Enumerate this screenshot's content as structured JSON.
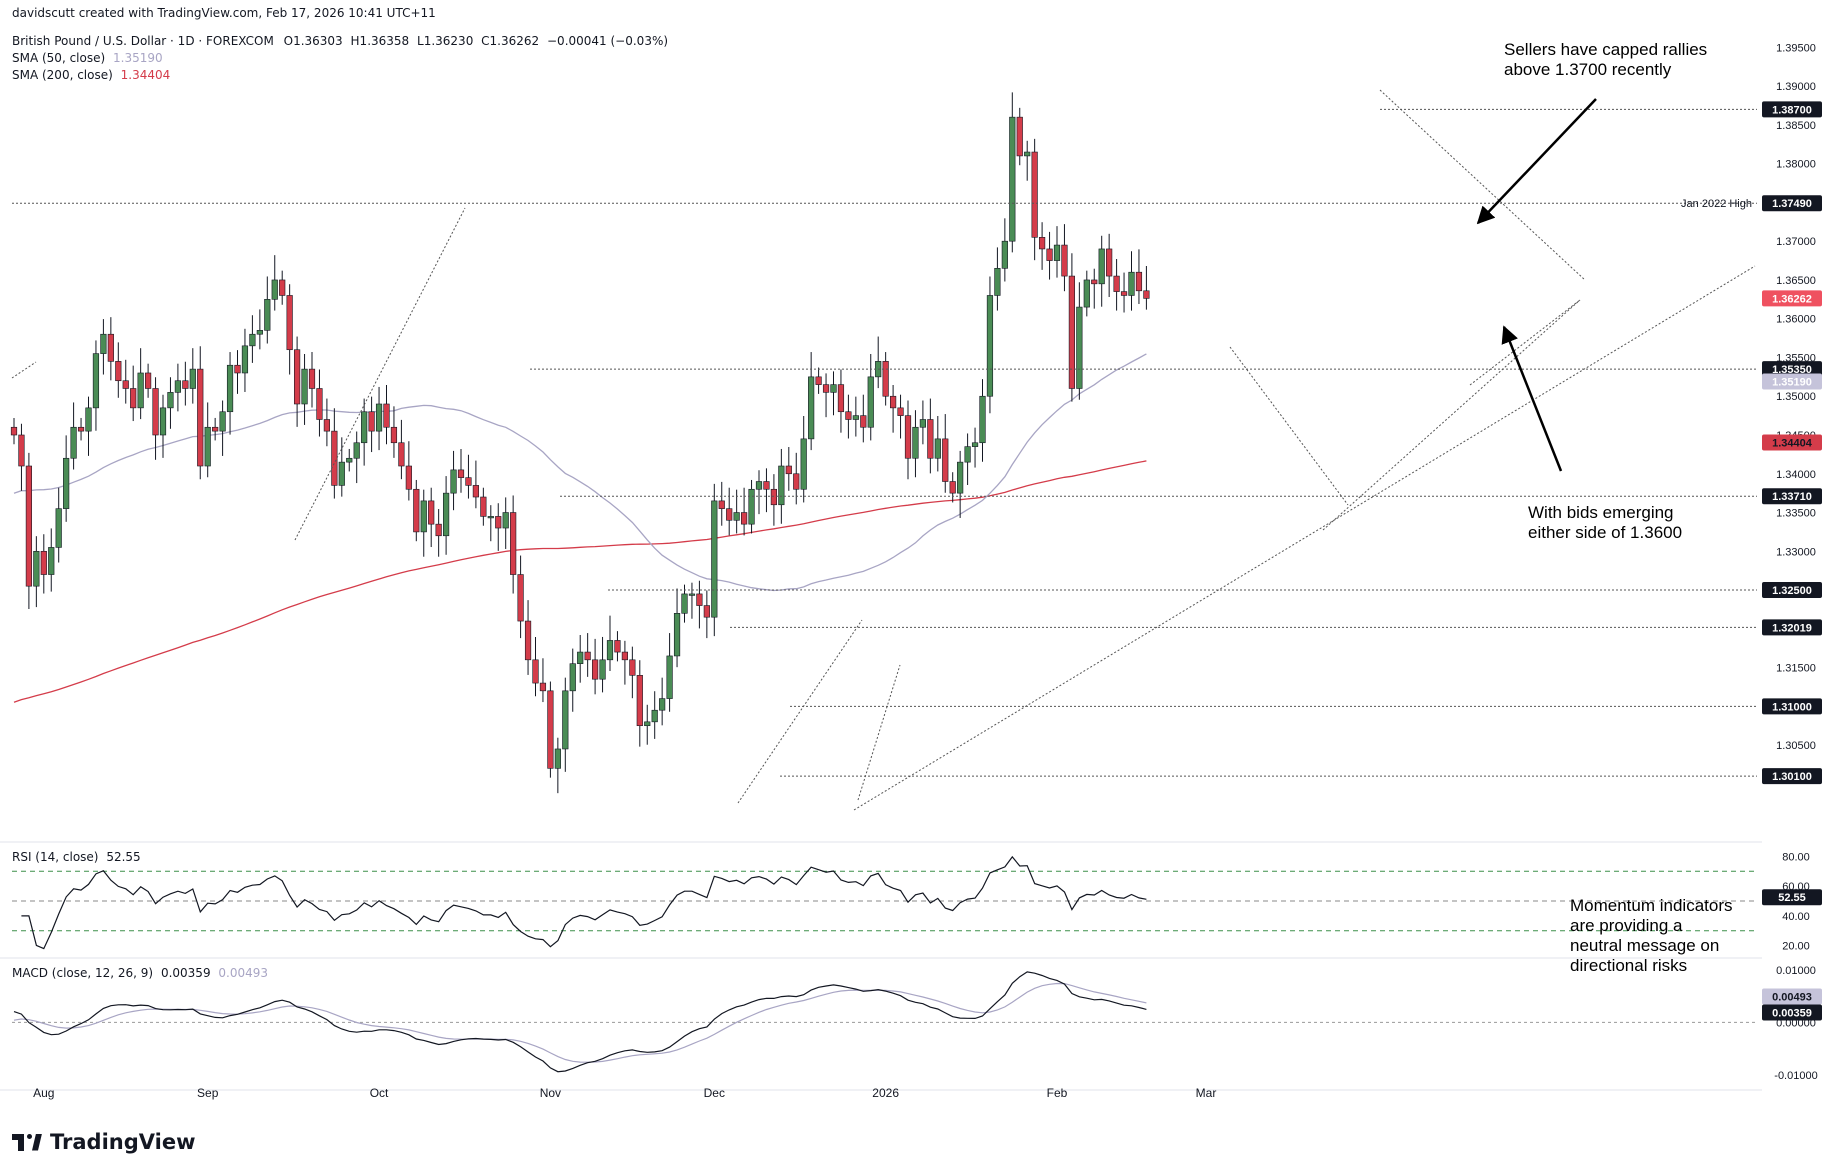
{
  "header": {
    "credit": "davidscutt created with TradingView.com, Feb 17, 2026 10:41 UTC+11",
    "symbol_line": "British Pound / U.S. Dollar · 1D · FOREXCOM",
    "ohlc": {
      "o": "O1.36303",
      "h": "H1.36358",
      "l": "L1.36230",
      "c": "C1.36262",
      "chg": "−0.00041 (−0.03%)"
    },
    "sma50_label": "SMA (50, close)",
    "sma50_value": "1.35190",
    "sma200_label": "SMA (200, close)",
    "sma200_value": "1.34404"
  },
  "colors": {
    "up": "#4a8c55",
    "down": "#d43c4a",
    "sma50": "#a8a5c4",
    "sma200": "#d43c4a",
    "tag_dark": "#131722",
    "grid_dash": "#3d8f4a"
  },
  "annotations": {
    "sellers": [
      "Sellers have capped rallies",
      "above 1.3700 recently"
    ],
    "bids": [
      "With bids emerging",
      "either side of 1.3600"
    ],
    "momentum": [
      "Momentum indicators",
      "are providing a",
      "neutral message on",
      "directional risks"
    ]
  },
  "levels_label": "Jan 2022 High",
  "rsi_header": {
    "label": "RSI (14, close)",
    "value": "52.55"
  },
  "macd_header": {
    "label": "MACD (close, 12, 26, 9)",
    "macd": "0.00359",
    "signal": "0.00493"
  },
  "logo_text": "TradingView",
  "chart_data": {
    "type": "candlestick",
    "title": "British Pound / U.S. Dollar · 1D · FOREXCOM",
    "price_axis": {
      "range": [
        1.2925,
        1.3975
      ],
      "ticks": [
        "1.39500",
        "1.39000",
        "1.38500",
        "1.38000",
        "1.37000",
        "1.36500",
        "1.36000",
        "1.35500",
        "1.35000",
        "1.34500",
        "1.34000",
        "1.33500",
        "1.33000",
        "1.31500",
        "1.30500"
      ]
    },
    "tagged_levels": [
      {
        "value": 1.387,
        "label": "1.38700"
      },
      {
        "value": 1.3749,
        "label": "1.37490"
      },
      {
        "value": 1.3535,
        "label": "1.35350"
      },
      {
        "value": 1.3371,
        "label": "1.33710"
      },
      {
        "value": 1.325,
        "label": "1.32500"
      },
      {
        "value": 1.32019,
        "label": "1.32019"
      },
      {
        "value": 1.31,
        "label": "1.31000"
      },
      {
        "value": 1.301,
        "label": "1.30100"
      }
    ],
    "current_price": {
      "value": 1.36262,
      "label": "1.36262"
    },
    "sma50_tag": {
      "value": 1.3519,
      "label": "1.35190"
    },
    "sma200_tag": {
      "value": 1.34404,
      "label": "1.34404"
    },
    "x_labels": [
      {
        "label": "Aug",
        "index": 4
      },
      {
        "label": "Sep",
        "index": 26
      },
      {
        "label": "Oct",
        "index": 49
      },
      {
        "label": "Nov",
        "index": 72
      },
      {
        "label": "Dec",
        "index": 94
      },
      {
        "label": "2026",
        "index": 117
      },
      {
        "label": "Feb",
        "index": 140
      },
      {
        "label": "Mar",
        "index": 160
      }
    ],
    "closes": [
      1.345,
      1.341,
      1.3255,
      1.33,
      1.327,
      1.3305,
      1.3355,
      1.342,
      1.346,
      1.3455,
      1.3485,
      1.3555,
      1.358,
      1.3545,
      1.352,
      1.351,
      1.3485,
      1.353,
      1.351,
      1.345,
      1.3485,
      1.3505,
      1.352,
      1.351,
      1.3535,
      1.341,
      1.346,
      1.3455,
      1.348,
      1.354,
      1.353,
      1.3565,
      1.358,
      1.3585,
      1.3625,
      1.365,
      1.363,
      1.356,
      1.349,
      1.3535,
      1.351,
      1.347,
      1.3455,
      1.3385,
      1.3415,
      1.342,
      1.344,
      1.348,
      1.3455,
      1.349,
      1.346,
      1.344,
      1.341,
      1.338,
      1.3325,
      1.3365,
      1.3335,
      1.332,
      1.3375,
      1.3405,
      1.3395,
      1.3385,
      1.337,
      1.3345,
      1.3345,
      1.333,
      1.335,
      1.327,
      1.321,
      1.316,
      1.313,
      1.312,
      1.302,
      1.3045,
      1.312,
      1.3155,
      1.317,
      1.316,
      1.3135,
      1.316,
      1.3185,
      1.317,
      1.316,
      1.314,
      1.3075,
      1.308,
      1.3095,
      1.311,
      1.3165,
      1.322,
      1.3245,
      1.3245,
      1.323,
      1.3215,
      1.3365,
      1.3355,
      1.334,
      1.335,
      1.3335,
      1.338,
      1.339,
      1.338,
      1.336,
      1.341,
      1.34,
      1.338,
      1.3445,
      1.3525,
      1.3515,
      1.3505,
      1.3515,
      1.348,
      1.347,
      1.3475,
      1.346,
      1.3525,
      1.3545,
      1.35,
      1.3485,
      1.3475,
      1.342,
      1.346,
      1.347,
      1.342,
      1.3445,
      1.339,
      1.3375,
      1.3415,
      1.3435,
      1.344,
      1.35,
      1.363,
      1.3665,
      1.37,
      1.386,
      1.381,
      1.3815,
      1.3705,
      1.369,
      1.3675,
      1.3695,
      1.3655,
      1.351,
      1.3615,
      1.365,
      1.3645,
      1.369,
      1.3655,
      1.3635,
      1.363,
      1.366,
      1.3636,
      1.36262
    ],
    "series": [
      {
        "name": "SMA (50, close)",
        "value": 1.3519
      },
      {
        "name": "SMA (200, close)",
        "value": 1.34404
      }
    ],
    "rsi": {
      "label": "RSI (14, close)",
      "last": 52.55,
      "range": [
        13,
        87
      ],
      "ticks": [
        80,
        60,
        40,
        20
      ],
      "bands": [
        70,
        50,
        30
      ]
    },
    "macd": {
      "label": "MACD (close, 12, 26, 9)",
      "macd": 0.00359,
      "signal": 0.00493,
      "range": [
        -0.0125,
        0.0115
      ],
      "ticks": [
        "0.01000",
        "0.00000",
        "-0.01000"
      ]
    }
  }
}
